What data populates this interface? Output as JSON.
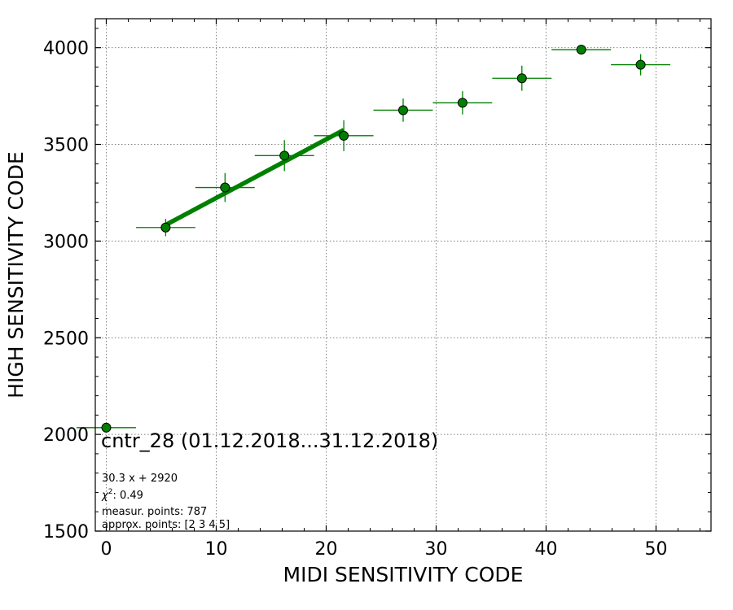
{
  "chart_data": {
    "type": "scatter",
    "xlabel": "MIDI SENSITIVITY CODE",
    "ylabel": "HIGH SENSITIVITY CODE",
    "xlim": [
      -1,
      55
    ],
    "ylim": [
      1500,
      4150
    ],
    "xticks": [
      0,
      10,
      20,
      30,
      40,
      50
    ],
    "yticks": [
      1500,
      2000,
      2500,
      3000,
      3500,
      4000
    ],
    "grid": true,
    "series": [
      {
        "kind": "errorbar",
        "color": "#008000",
        "points": [
          {
            "x": 0.0,
            "y": 2035,
            "xerr": 2.7,
            "yerr": 0
          },
          {
            "x": 5.4,
            "y": 3070,
            "xerr": 2.7,
            "yerr": 45
          },
          {
            "x": 10.8,
            "y": 3277,
            "xerr": 2.7,
            "yerr": 75
          },
          {
            "x": 16.2,
            "y": 3442,
            "xerr": 2.7,
            "yerr": 80
          },
          {
            "x": 21.6,
            "y": 3545,
            "xerr": 2.7,
            "yerr": 80
          },
          {
            "x": 27.0,
            "y": 3677,
            "xerr": 2.7,
            "yerr": 60
          },
          {
            "x": 32.4,
            "y": 3715,
            "xerr": 2.7,
            "yerr": 60
          },
          {
            "x": 37.8,
            "y": 3842,
            "xerr": 2.7,
            "yerr": 65
          },
          {
            "x": 43.2,
            "y": 3990,
            "xerr": 2.7,
            "yerr": 20
          },
          {
            "x": 48.6,
            "y": 3912,
            "xerr": 2.7,
            "yerr": 55
          }
        ]
      },
      {
        "kind": "fit-line",
        "color": "#008000",
        "x": [
          5.4,
          21.6
        ],
        "y": [
          3083.6,
          3574.5
        ]
      }
    ],
    "annotations": {
      "title": "cntr_28 (01.12.2018...31.12.2018)",
      "fit": "30.3 x + 2920",
      "chi2_label": "χ",
      "chi2_sup": "2",
      "chi2_value": ": 0.49",
      "measur": "measur. points: 787",
      "approx": "approx. points: [2 3 4 5]"
    }
  }
}
